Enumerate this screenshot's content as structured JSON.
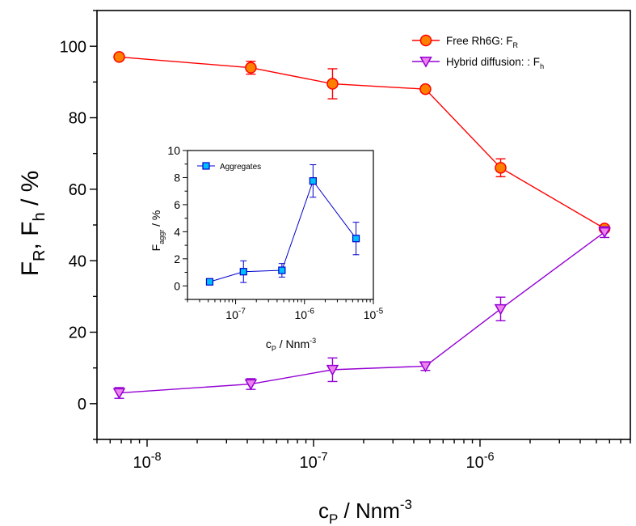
{
  "chart_data": [
    {
      "type": "line",
      "x_scale": "log",
      "xlabel": "c",
      "xlabel_sub": "P",
      "xlabel_unit": " / Nnm",
      "xlabel_sup": "-3",
      "ylabel_parts": {
        "f1": "F",
        "sub1": "R",
        "mid": ", F",
        "sub2": "h",
        "tail": " / %"
      },
      "xlim": [
        5e-09,
        8e-06
      ],
      "ylim": [
        -10,
        110
      ],
      "x_tick_labels": [
        {
          "value": 1e-08,
          "base": "10",
          "exp": "-8"
        },
        {
          "value": 1e-07,
          "base": "10",
          "exp": "-7"
        },
        {
          "value": 1e-06,
          "base": "10",
          "exp": "-6"
        }
      ],
      "y_ticks": [
        0,
        20,
        40,
        60,
        80,
        100
      ],
      "legend_position": "top-right",
      "series": [
        {
          "name": "Free Rh6G: F",
          "name_sub": "R",
          "color": "#ff0000",
          "marker": "circle",
          "marker_fill": "#ff8000",
          "x": [
            6.8e-09,
            4.2e-08,
            1.3e-07,
            4.7e-07,
            1.33e-06,
            5.6e-06
          ],
          "y": [
            97,
            94,
            89.5,
            88,
            66,
            49
          ],
          "err": [
            0.6,
            1.8,
            4.2,
            0.8,
            2.5,
            0.5
          ]
        },
        {
          "name": "Hybrid diffusion: : F",
          "name_sub": "h",
          "color": "#9400d3",
          "marker": "triangle-down",
          "marker_fill": "#ee82ee",
          "x": [
            6.8e-09,
            4.2e-08,
            1.3e-07,
            4.7e-07,
            1.33e-06,
            5.6e-06
          ],
          "y": [
            3,
            5.5,
            9.5,
            10.5,
            26.5,
            48
          ],
          "err": [
            1.5,
            1.5,
            3.3,
            1.2,
            3.3,
            1.5
          ]
        }
      ]
    },
    {
      "type": "line",
      "x_scale": "log",
      "xlabel": "c",
      "xlabel_sub": "P",
      "xlabel_unit": " / Nnm",
      "xlabel_sup": "-3",
      "ylabel": "F",
      "ylabel_sub": "aggr",
      "ylabel_tail": " / %",
      "xlim": [
        2e-08,
        1e-05
      ],
      "ylim": [
        -1,
        10
      ],
      "x_tick_labels": [
        {
          "value": 1e-07,
          "base": "10",
          "exp": "-7"
        },
        {
          "value": 1e-06,
          "base": "10",
          "exp": "-6"
        },
        {
          "value": 1e-05,
          "base": "10",
          "exp": "-5"
        }
      ],
      "y_ticks": [
        0,
        2,
        4,
        6,
        8,
        10
      ],
      "legend_position": "top-left",
      "series": [
        {
          "name": "Aggregates",
          "color": "#0000cd",
          "marker": "square",
          "marker_fill": "#00bfff",
          "x": [
            4.2e-08,
            1.3e-07,
            4.7e-07,
            1.33e-06,
            5.6e-06
          ],
          "y": [
            0.3,
            1.05,
            1.15,
            7.75,
            3.5
          ],
          "err": [
            0.15,
            0.8,
            0.5,
            1.2,
            1.2
          ]
        }
      ]
    }
  ]
}
